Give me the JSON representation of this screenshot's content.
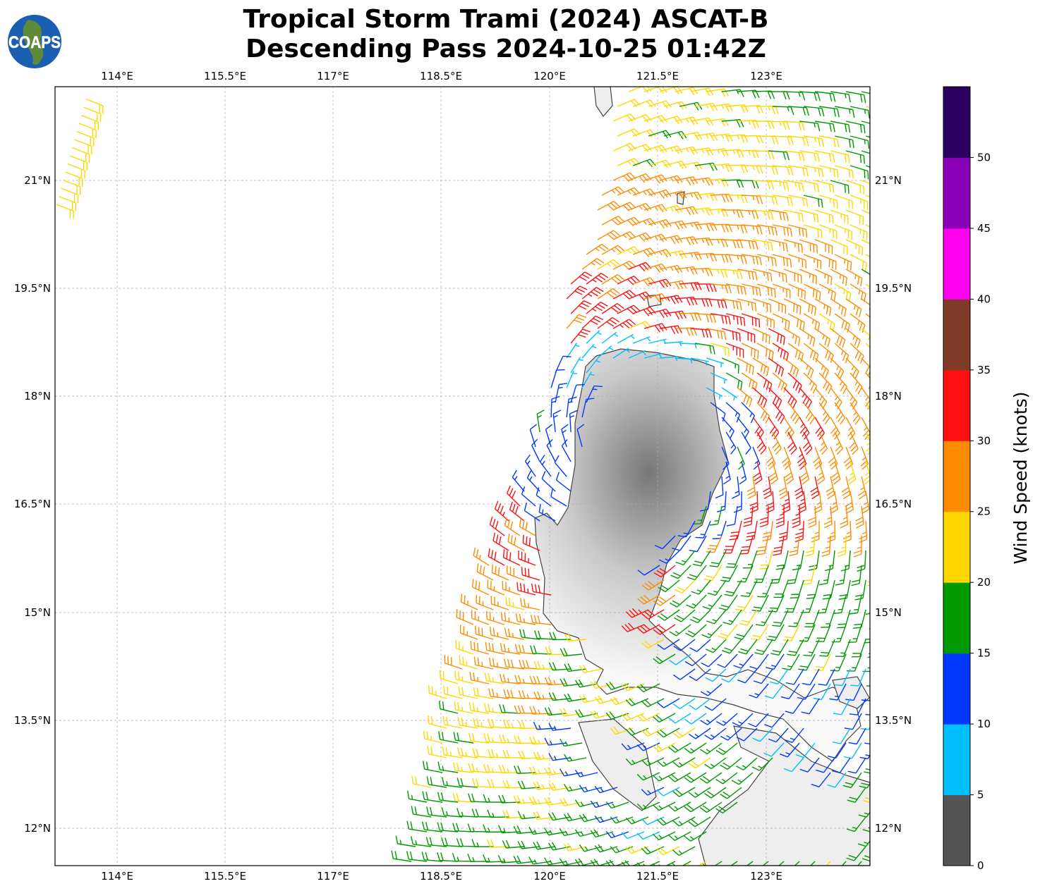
{
  "title": {
    "line1": "Tropical Storm Trami (2024) ASCAT-B",
    "line2": "Descending Pass 2024-10-25 01:42Z"
  },
  "logo": {
    "text": "COAPS"
  },
  "map": {
    "lon_ticks": [
      "114°E",
      "115.5°E",
      "117°E",
      "118.5°E",
      "120°E",
      "121.5°E",
      "123°E"
    ],
    "lat_ticks": [
      "21°N",
      "19.5°N",
      "18°N",
      "16.5°N",
      "15°N",
      "13.5°N",
      "12°N"
    ],
    "gridlines": true
  },
  "colorbar": {
    "label": "Wind Speed (knots)",
    "ticks": [
      "0",
      "5",
      "10",
      "15",
      "20",
      "25",
      "30",
      "35",
      "40",
      "45",
      "50"
    ],
    "range": [
      0,
      55
    ],
    "colors": [
      "#555555",
      "#00bfff",
      "#0038ff",
      "#009900",
      "#ffd700",
      "#ff8c00",
      "#ff1010",
      "#7f3b28",
      "#ff00ee",
      "#8a00b8",
      "#2b0060"
    ]
  }
}
